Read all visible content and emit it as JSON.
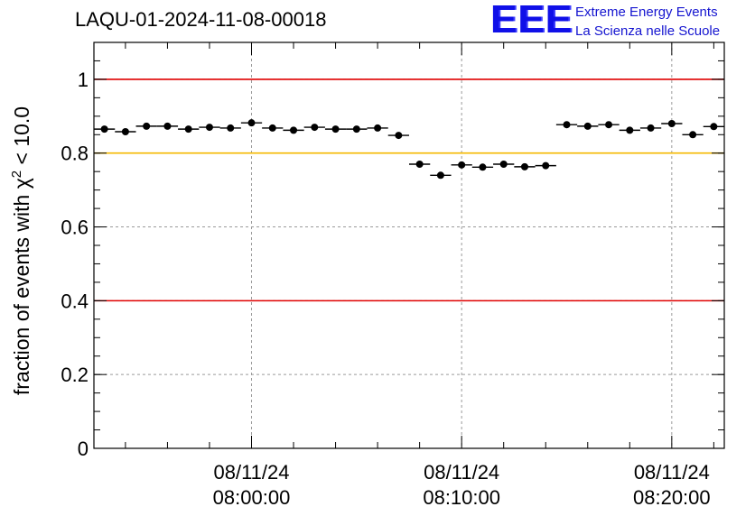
{
  "title": "LAQU-01-2024-11-08-00018",
  "logo": {
    "mark": "EEE",
    "line1": "Extreme Energy Events",
    "line2": "La Scienza nelle Scuole"
  },
  "colors": {
    "reference_red": "#e00000",
    "reference_yellow": "#f5b800",
    "marker": "#000000",
    "logo_blue": "#1515d0"
  },
  "chart_data": {
    "type": "scatter",
    "title": "LAQU-01-2024-11-08-00018",
    "ylabel": "fraction of events with χ² < 10.0",
    "ylabel_parts": {
      "prefix": "fraction of events with ",
      "symbol": "χ",
      "superscript": "2",
      "suffix": " < 10.0"
    },
    "ylim": [
      0,
      1.1
    ],
    "yticks": [
      0,
      0.2,
      0.4,
      0.6,
      0.8,
      1
    ],
    "ytick_labels": [
      "0",
      "0.2",
      "0.4",
      "0.6",
      "0.8",
      "1"
    ],
    "xlim_minutes": [
      -7.5,
      22.5
    ],
    "xticks_minutes": [
      0,
      10,
      20
    ],
    "xtick_labels": [
      [
        "08/11/24",
        "08:00:00"
      ],
      [
        "08/11/24",
        "08:10:00"
      ],
      [
        "08/11/24",
        "08:20:00"
      ]
    ],
    "grid": true,
    "reference_lines": [
      {
        "y": 1.0,
        "color": "red"
      },
      {
        "y": 0.8,
        "color": "yellow"
      },
      {
        "y": 0.4,
        "color": "red"
      }
    ],
    "bin_width_minutes": 1,
    "series": [
      {
        "x_minutes": [
          -7,
          -6,
          -5,
          -4,
          -3,
          -2,
          -1,
          0,
          1,
          2,
          3,
          4,
          5,
          6,
          7,
          8,
          9,
          10,
          11,
          12,
          13,
          14,
          15,
          16,
          17,
          18,
          19,
          20,
          21,
          22
        ],
        "values": [
          0.865,
          0.858,
          0.873,
          0.873,
          0.865,
          0.87,
          0.868,
          0.882,
          0.868,
          0.862,
          0.87,
          0.865,
          0.865,
          0.868,
          0.848,
          0.77,
          0.74,
          0.768,
          0.762,
          0.77,
          0.763,
          0.766,
          0.877,
          0.873,
          0.877,
          0.862,
          0.868,
          0.88,
          0.85,
          0.872
        ]
      }
    ]
  }
}
